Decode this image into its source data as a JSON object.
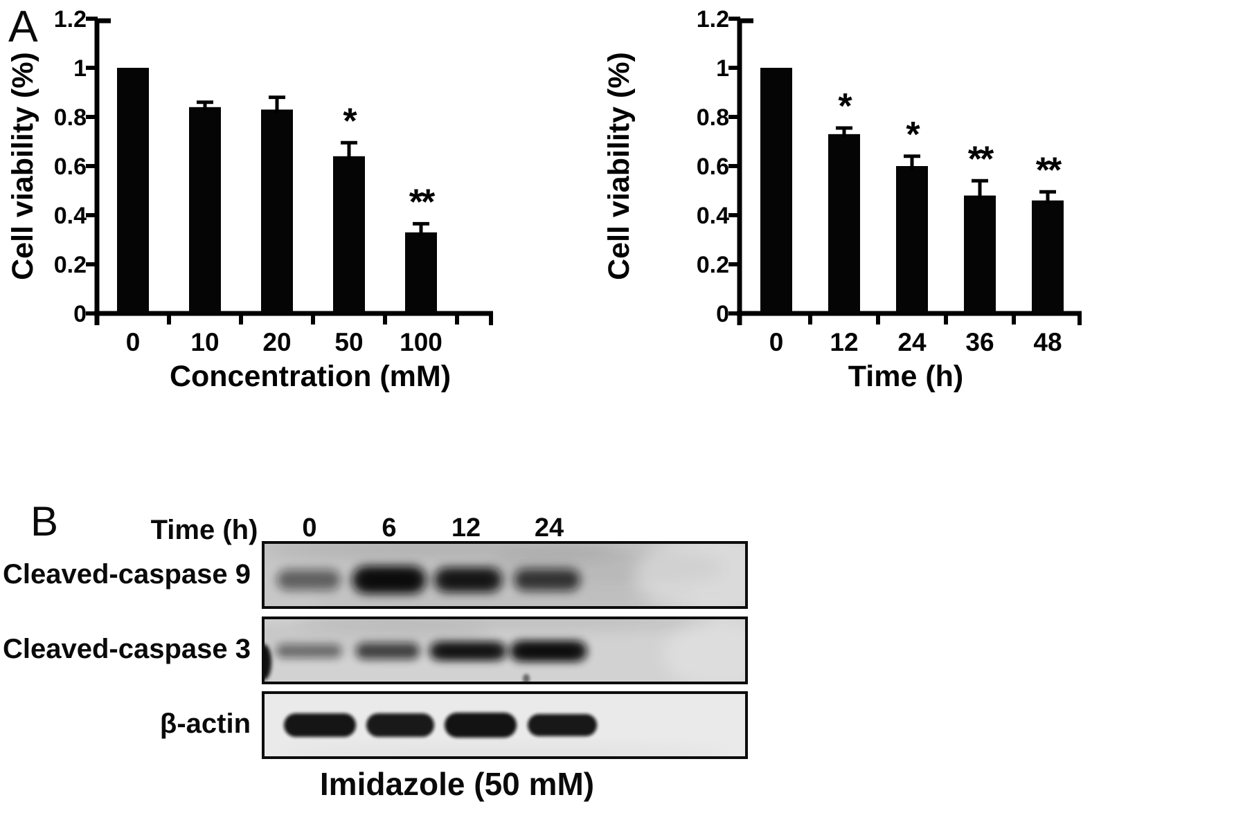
{
  "figure": {
    "panel_a_label": "A",
    "panel_b_label": "B",
    "background": "#ffffff",
    "ink_color": "#000000"
  },
  "chart_data": [
    {
      "type": "bar",
      "title": "",
      "categories": [
        "0",
        "10",
        "20",
        "50",
        "100"
      ],
      "values": [
        1.0,
        0.84,
        0.83,
        0.64,
        0.33
      ],
      "errors_upper": [
        0,
        0.02,
        0.05,
        0.055,
        0.035
      ],
      "significance": [
        "",
        "",
        "",
        "*",
        "**"
      ],
      "xlabel": "Concentration (mM)",
      "ylabel": "Cell viability (%)",
      "ylim": [
        0,
        1.2
      ],
      "yticks": [
        0,
        0.2,
        0.4,
        0.6,
        0.8,
        1,
        1.2
      ],
      "ytick_labels": [
        "0",
        "0.2",
        "0.4",
        "0.6",
        "0.8",
        "1",
        "1.2"
      ],
      "bar_color": "#050505",
      "grid": false,
      "legend_position": "none"
    },
    {
      "type": "bar",
      "title": "",
      "categories": [
        "0",
        "12",
        "24",
        "36",
        "48"
      ],
      "values": [
        1.0,
        0.73,
        0.6,
        0.48,
        0.46
      ],
      "errors_upper": [
        0,
        0.025,
        0.04,
        0.06,
        0.035
      ],
      "significance": [
        "",
        "*",
        "*",
        "**",
        "**"
      ],
      "xlabel": "Time (h)",
      "ylabel": "Cell viability (%)",
      "ylim": [
        0,
        1.2
      ],
      "yticks": [
        0,
        0.2,
        0.4,
        0.6,
        0.8,
        1,
        1.2
      ],
      "ytick_labels": [
        "0",
        "0.2",
        "0.4",
        "0.6",
        "0.8",
        "1",
        "1.2"
      ],
      "bar_color": "#050505",
      "grid": false,
      "legend_position": "none"
    }
  ],
  "blot_panel": {
    "header_label": "Time (h)",
    "lane_labels": [
      "0",
      "6",
      "12",
      "24"
    ],
    "rows": [
      {
        "label": "Cleaved-caspase 9",
        "band_intensities": [
          0.55,
          0.93,
          0.85,
          0.78
        ]
      },
      {
        "label": "Cleaved-caspase 3",
        "band_intensities": [
          0.5,
          0.72,
          0.88,
          0.92
        ]
      },
      {
        "label": "β-actin",
        "band_intensities": [
          0.96,
          0.94,
          0.97,
          0.95
        ]
      }
    ],
    "caption": "Imidazole (50 mM)"
  }
}
